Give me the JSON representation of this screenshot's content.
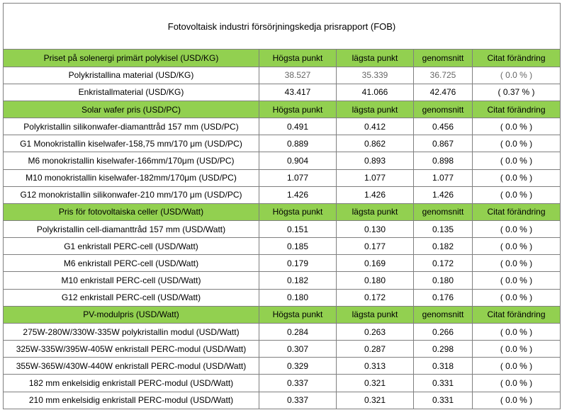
{
  "title": "Fotovoltaisk industri försörjningskedja prisrapport (FOB)",
  "sections": [
    {
      "header": {
        "label": "Priset på solenergi primärt polykisel (USD/KG)",
        "high": "Högsta punkt",
        "low": "lägsta punkt",
        "avg": "genomsnitt",
        "change": "Citat förändring"
      },
      "rows": [
        {
          "label": "Polykristallina material (USD/KG)",
          "high": "38.527",
          "low": "35.339",
          "avg": "36.725",
          "change": "( 0.0 % )"
        },
        {
          "label": "Enkristallmaterial (USD/KG)",
          "high": "43.417",
          "low": "41.066",
          "avg": "42.476",
          "change": "( 0.37 % )"
        }
      ]
    },
    {
      "header": {
        "label": "Solar wafer pris (USD/PC)",
        "high": "Högsta punkt",
        "low": "lägsta punkt",
        "avg": "genomsnitt",
        "change": "Citat förändring"
      },
      "rows": [
        {
          "label": "Polykristallin silikonwafer-diamanttråd 157 mm (USD/PC)",
          "high": "0.491",
          "low": "0.412",
          "avg": "0.456",
          "change": "( 0.0 % )"
        },
        {
          "label": "G1 Monokristallin kiselwafer-158,75 mm/170 μm (USD/PC)",
          "high": "0.889",
          "low": "0.862",
          "avg": "0.867",
          "change": "( 0.0 % )"
        },
        {
          "label": "M6 monokristallin kiselwafer-166mm/170μm (USD/PC)",
          "high": "0.904",
          "low": "0.893",
          "avg": "0.898",
          "change": "( 0.0 % )"
        },
        {
          "label": "M10 monokristallin kiselwafer-182mm/170μm (USD/PC)",
          "high": "1.077",
          "low": "1.077",
          "avg": "1.077",
          "change": "( 0.0 % )"
        },
        {
          "label": "G12 monokristallin silikonwafer-210 mm/170 μm (USD/PC)",
          "high": "1.426",
          "low": "1.426",
          "avg": "1.426",
          "change": "( 0.0 % )"
        }
      ]
    },
    {
      "header": {
        "label": "Pris för fotovoltaiska celler (USD/Watt)",
        "high": "Högsta punkt",
        "low": "lägsta punkt",
        "avg": "genomsnitt",
        "change": "Citat förändring"
      },
      "rows": [
        {
          "label": "Polykristallin cell-diamanttråd 157 mm (USD/Watt)",
          "high": "0.151",
          "low": "0.130",
          "avg": "0.135",
          "change": "( 0.0 % )"
        },
        {
          "label": "G1 enkristall PERC-cell (USD/Watt)",
          "high": "0.185",
          "low": "0.177",
          "avg": "0.182",
          "change": "( 0.0 % )"
        },
        {
          "label": "M6 enkristall PERC-cell (USD/Watt)",
          "high": "0.179",
          "low": "0.169",
          "avg": "0.172",
          "change": "( 0.0 % )"
        },
        {
          "label": "M10 enkristall PERC-cell (USD/Watt)",
          "high": "0.182",
          "low": "0.180",
          "avg": "0.180",
          "change": "( 0.0 % )"
        },
        {
          "label": "G12 enkristall PERC-cell (USD/Watt)",
          "high": "0.180",
          "low": "0.172",
          "avg": "0.176",
          "change": "( 0.0 % )"
        }
      ]
    },
    {
      "header": {
        "label": "PV-modulpris (USD/Watt)",
        "high": "Högsta punkt",
        "low": "lägsta punkt",
        "avg": "genomsnitt",
        "change": "Citat förändring"
      },
      "rows": [
        {
          "label": "275W-280W/330W-335W polykristallin modul (USD/Watt)",
          "high": "0.284",
          "low": "0.263",
          "avg": "0.266",
          "change": "( 0.0 % )"
        },
        {
          "label": "325W-335W/395W-405W enkristall PERC-modul (USD/Watt)",
          "high": "0.307",
          "low": "0.287",
          "avg": "0.298",
          "change": "( 0.0 % )"
        },
        {
          "label": "355W-365W/430W-440W enkristall PERC-modul (USD/Watt)",
          "high": "0.329",
          "low": "0.313",
          "avg": "0.318",
          "change": "( 0.0 % )"
        },
        {
          "label": "182 mm enkelsidig enkristall PERC-modul (USD/Watt)",
          "high": "0.337",
          "low": "0.321",
          "avg": "0.331",
          "change": "( 0.0 % )"
        },
        {
          "label": "210 mm enkelsidig enkristall PERC-modul (USD/Watt)",
          "high": "0.337",
          "low": "0.321",
          "avg": "0.331",
          "change": "( 0.0 % )"
        }
      ]
    }
  ],
  "colors": {
    "section_header_bg": "#92d050",
    "border": "#7f7f7f",
    "muted_value_text": "#666666"
  }
}
